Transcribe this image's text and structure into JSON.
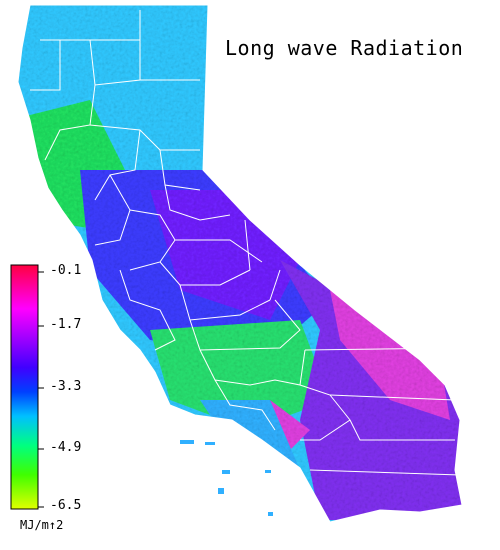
{
  "title": "Long wave Radiation",
  "legend": {
    "ticks": [
      "-0.1",
      "-1.7",
      "-3.3",
      "-4.9",
      "-6.5"
    ],
    "unit": "MJ/m↑2",
    "gradient_colors": [
      "#ff0040",
      "#ff00ff",
      "#a000ff",
      "#4000ff",
      "#0040ff",
      "#00c0ff",
      "#00ff80",
      "#40ff00",
      "#e0ff00"
    ]
  },
  "map_colors": {
    "north": "#30c8ff",
    "coast_green": "#20e060",
    "central_valley": "#3c3cff",
    "sierra": "#7020ff",
    "central_coast": "#28e070",
    "desert": "#8030f0",
    "desert_hot": "#e040e0",
    "south_coast": "#30b0ff",
    "county_lines": "#ffffff"
  }
}
